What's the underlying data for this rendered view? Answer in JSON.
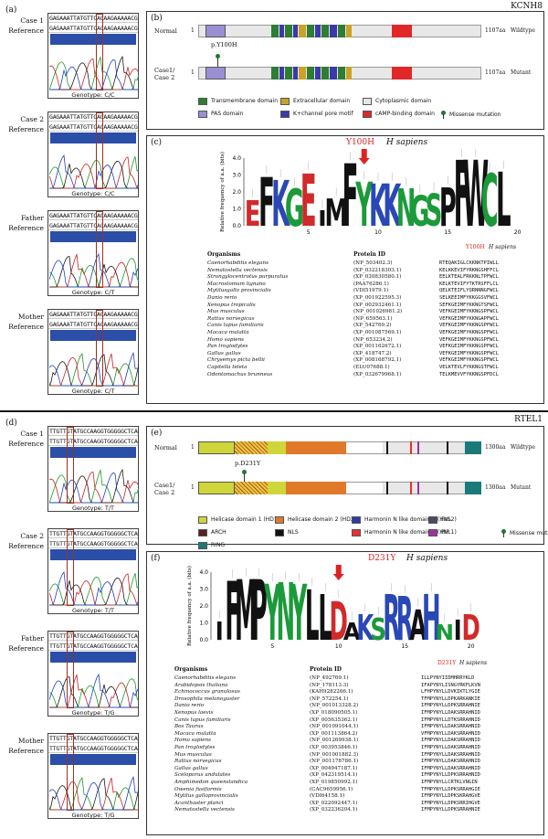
{
  "genes": {
    "top": "KCNH8",
    "bottom": "RTEL1"
  },
  "panels": {
    "a": "(a)",
    "b": "(b)",
    "c": "(c)",
    "d": "(d)",
    "e": "(e)",
    "f": "(f)"
  },
  "top_traces": [
    {
      "case": "Case 1",
      "ref": "Reference",
      "genotype": "Genotype: C/C"
    },
    {
      "case": "Case 2",
      "ref": "Reference",
      "genotype": "Genotype: C/C"
    },
    {
      "case": "Father",
      "ref": "Reference",
      "genotype": "Genotype: C/T"
    },
    {
      "case": "Mother",
      "ref": "Reference",
      "genotype": "Genotype: C/T"
    }
  ],
  "top_seq": "GAGAAATTATGTTCACAAGAAAAACG",
  "bottom_traces": [
    {
      "case": "Case 1",
      "ref": "Reference",
      "genotype": "Genotype: T/T"
    },
    {
      "case": "Case 2",
      "ref": "Reference",
      "genotype": "Genotype: T/T"
    },
    {
      "case": "Father",
      "ref": "Reference",
      "genotype": "Genotype: T/G"
    },
    {
      "case": "Mother",
      "ref": "Reference",
      "genotype": "Genotype: T/G"
    }
  ],
  "bottom_seq": "TTGTTGTATGCCAAGGTGGGGGCTCAG",
  "kcnh8_domains": {
    "normal": "Normal",
    "case": "Case1/ Case 2",
    "start": "1",
    "end": "1107aa",
    "wildtype": "Wildtype",
    "mutant": "Mutant",
    "variant": "p.Y100H",
    "legend": [
      {
        "label": "Transmembrane domain",
        "color": "#2e7d32"
      },
      {
        "label": "Extracellular domain",
        "color": "#c9a227"
      },
      {
        "label": "Cytoplasmic domain",
        "color": "#e6e6e6"
      },
      {
        "label": "PAS domain",
        "color": "#9b8fd4"
      },
      {
        "label": "K+channel pore motif",
        "color": "#3a3aa8"
      },
      {
        "label": "cAMP-binding domain",
        "color": "#e02828"
      }
    ],
    "missense": "Missense mutation"
  },
  "kcnh8_logo": {
    "title": "Y100H",
    "species": "H sapiens",
    "ylabel": "Relative frequency of a.a. (bits)",
    "yticks": [
      "4.0",
      "3.0",
      "2.0",
      "1.0",
      "0.0"
    ],
    "xticks": [
      "5",
      "10",
      "15",
      "20"
    ],
    "letters": "EFKGEIMFYKKNGSPFWCL",
    "col_org": "Organisms",
    "col_pid": "Protein ID",
    "rows": [
      [
        "Caenorhabditis elegans",
        "(NP_503402.3)",
        "RTEQAKIGLCKKNKTPIWLL"
      ],
      [
        "Nematostella vectensis",
        "(XP_032218303.1)",
        "KELKKEVIFYRKNGSHFFCL"
      ],
      [
        "Strongylocentrotus purpuratus",
        "(XP_030830580.1)",
        "EELKTEALFRKKNLTPFWCL"
      ],
      [
        "Macrostomum lignano",
        "(PAA76286.1)",
        "KELKTEVIFYTKTRSFFLCL"
      ],
      [
        "Mytilusgallo provincialis",
        "(VDI51979.1)",
        "QELKTEIFLYQRNNNGFWCL"
      ],
      [
        "Danio rerio",
        "(XP_001922595.3)",
        "SELKEEIMFYKKGGSVFWCL"
      ],
      [
        "Xenopus tropicalis",
        "(XP_002932461.1)",
        "SEFKGEIMFYKKNGTSFWCL"
      ],
      [
        "Mus musculus",
        "(NP_001026981.2)",
        "VEFKGEIMFYKKNGSPFWCL"
      ],
      [
        "Rattus norvegicus",
        "(NP_659563.1)",
        "VEFKGEIMFYKKNGAPFWCL"
      ],
      [
        "Canis lupus familiaris",
        "(XP_542769.2)",
        "VEFKGEIMFYKKNGSPFWCL"
      ],
      [
        "Macaca mulatta",
        "(XP_001087569.1)",
        "VEFKGEIMFYKKNGSPFWCL"
      ],
      [
        "Homo sapiens",
        "(NP_653234.2)",
        "VEFKGEIMFYKKNGSPFWCL"
      ],
      [
        "Pan troglodytes",
        "(XP_001162672.1)",
        "VEFKGEIMFYKKNGSPFWCL"
      ],
      [
        "Gallus gallus",
        "(XP_418747.2)",
        "VEFKGEIMFYKKNGSPFWCL"
      ],
      [
        "Chrysemys picta bellii",
        "(XP_008168792.1)",
        "VEFKGEIMFYKKNGSPFWCL"
      ],
      [
        "Capitella teleta",
        "(ELU07688.1)",
        "VELKTEVLFYKKNGSTFWCL"
      ],
      [
        "Odontomachus brunneus",
        "(XP_032679968.1)",
        "TELKMEVVFYKKNGSPFDCL"
      ]
    ]
  },
  "rtel1_domains": {
    "normal": "Normal",
    "case": "Case1/ Case 2",
    "start": "1",
    "end": "1300aa",
    "wildtype": "Wildtype",
    "mutant": "Mutant",
    "variant": "p.D231Y",
    "legend": [
      {
        "label": "Helicase domain 1 (HD1)",
        "color": "#cfd63a"
      },
      {
        "label": "Helicase domain 2 (HD2)",
        "color": "#e07a2a"
      },
      {
        "label": "Harmonin N like domain 2 (HNL2)",
        "color": "#2a3ea8"
      },
      {
        "label": "FeS",
        "color": "#4a4a60"
      },
      {
        "label": "ARCH",
        "color": "#5a2020"
      },
      {
        "label": "NLS",
        "color": "#111111"
      },
      {
        "label": "Harmonin N like domain 1 (HNL1)",
        "color": "#e83030"
      },
      {
        "label": "PIP",
        "color": "#a030a0"
      },
      {
        "label": "RING",
        "color": "#1a7a7a"
      }
    ],
    "missense": "Missense mutation"
  },
  "rtel1_logo": {
    "title": "D231Y",
    "species": "H sapiens",
    "ylabel": "Relative frequency of a.a. (bits)",
    "yticks": [
      "4.0",
      "3.0",
      "2.0",
      "1.0",
      "0.0"
    ],
    "xticks": [
      "5",
      "10",
      "15",
      "20"
    ],
    "letters": "IFMPYNYLLDAKSRRAHNID",
    "col_org": "Organisms",
    "col_pid": "Protein ID",
    "rows": [
      [
        "Caenorhabditis elegans",
        "(NP_492769.1)",
        "ILLPYNYIIDMHRRYKLD"
      ],
      [
        "Arabidopsis thaliana",
        "(NP_178113.3)",
        "IFAPYNYLISNGYRKFLKVN"
      ],
      [
        "Echinococcus granulosus",
        "(KAH9282266.1)",
        "LFHPYNYLLDVKIKTLYGIE"
      ],
      [
        "Drosophila melanogaster",
        "(NP_572254.1)",
        "TFMPYNYLLDPKARKANKIE"
      ],
      [
        "Danio rerio",
        "(NP_001013328.2)",
        "IFMPYNYLLDPKSRRAHNIE"
      ],
      [
        "Xenopus laevis",
        "(XP_018090505.1)",
        "IFMPYNYLLDAKSRRAHNID"
      ],
      [
        "Canis lupus familiaris",
        "(XP_005635362.1)",
        "IFMPYNYLLDTKSRRAHNID"
      ],
      [
        "Bos Taurus",
        "(NP_001091044.1)",
        "IFMPYNYLLDAKSRRAHNID"
      ],
      [
        "Macaca mulatta",
        "(XP_001113864.2)",
        "VFMPYNYLLDAKSRRAHNID"
      ],
      [
        "Homo sapiens",
        "(NP_001269938.1)",
        "IFMPYNYLLDAKSRRAHNID"
      ],
      [
        "Pan troglodytes",
        "(XP_003953846.1)",
        "IFMPYNYLLDAKSRRAHNID"
      ],
      [
        "Mus musculus",
        "(NP_001001882.3)",
        "IFMPYNYLLDAKSRRAHNID"
      ],
      [
        "Rattus norvegicus",
        "(NP_001178786.1)",
        "IFMPYNYLLDAKSRRAHNID"
      ],
      [
        "Gallus gallus",
        "(XP_004947187.1)",
        "IFMPYNYLLDAKSRRAHNID"
      ],
      [
        "Sceloporus undulates",
        "(XP_042319514.1)",
        "IFMPYNYLLDPKSRRAHNID"
      ],
      [
        "Amphimedon queenslandica",
        "(XP_019850992.1)",
        "IFMPYNYLLCRTKLVNGIN"
      ],
      [
        "Owenia fusiformis",
        "(CAC9659956.1)",
        "TFMPYNYLLDPKSRRAHGIE"
      ],
      [
        "Mytilus galloprovincialis",
        "(VDI64158.1)",
        "IFMPYNYLLDPKSKRAHGVE"
      ],
      [
        "Acanthaster planci",
        "(XP_022092447.1)",
        "IFMPYNYLLDPKSRRIHGVE"
      ],
      [
        "Nematostella vectensis",
        "(XP_032236204.1)",
        "IFMPYNYLLDPKSRRAHNIE"
      ]
    ]
  }
}
